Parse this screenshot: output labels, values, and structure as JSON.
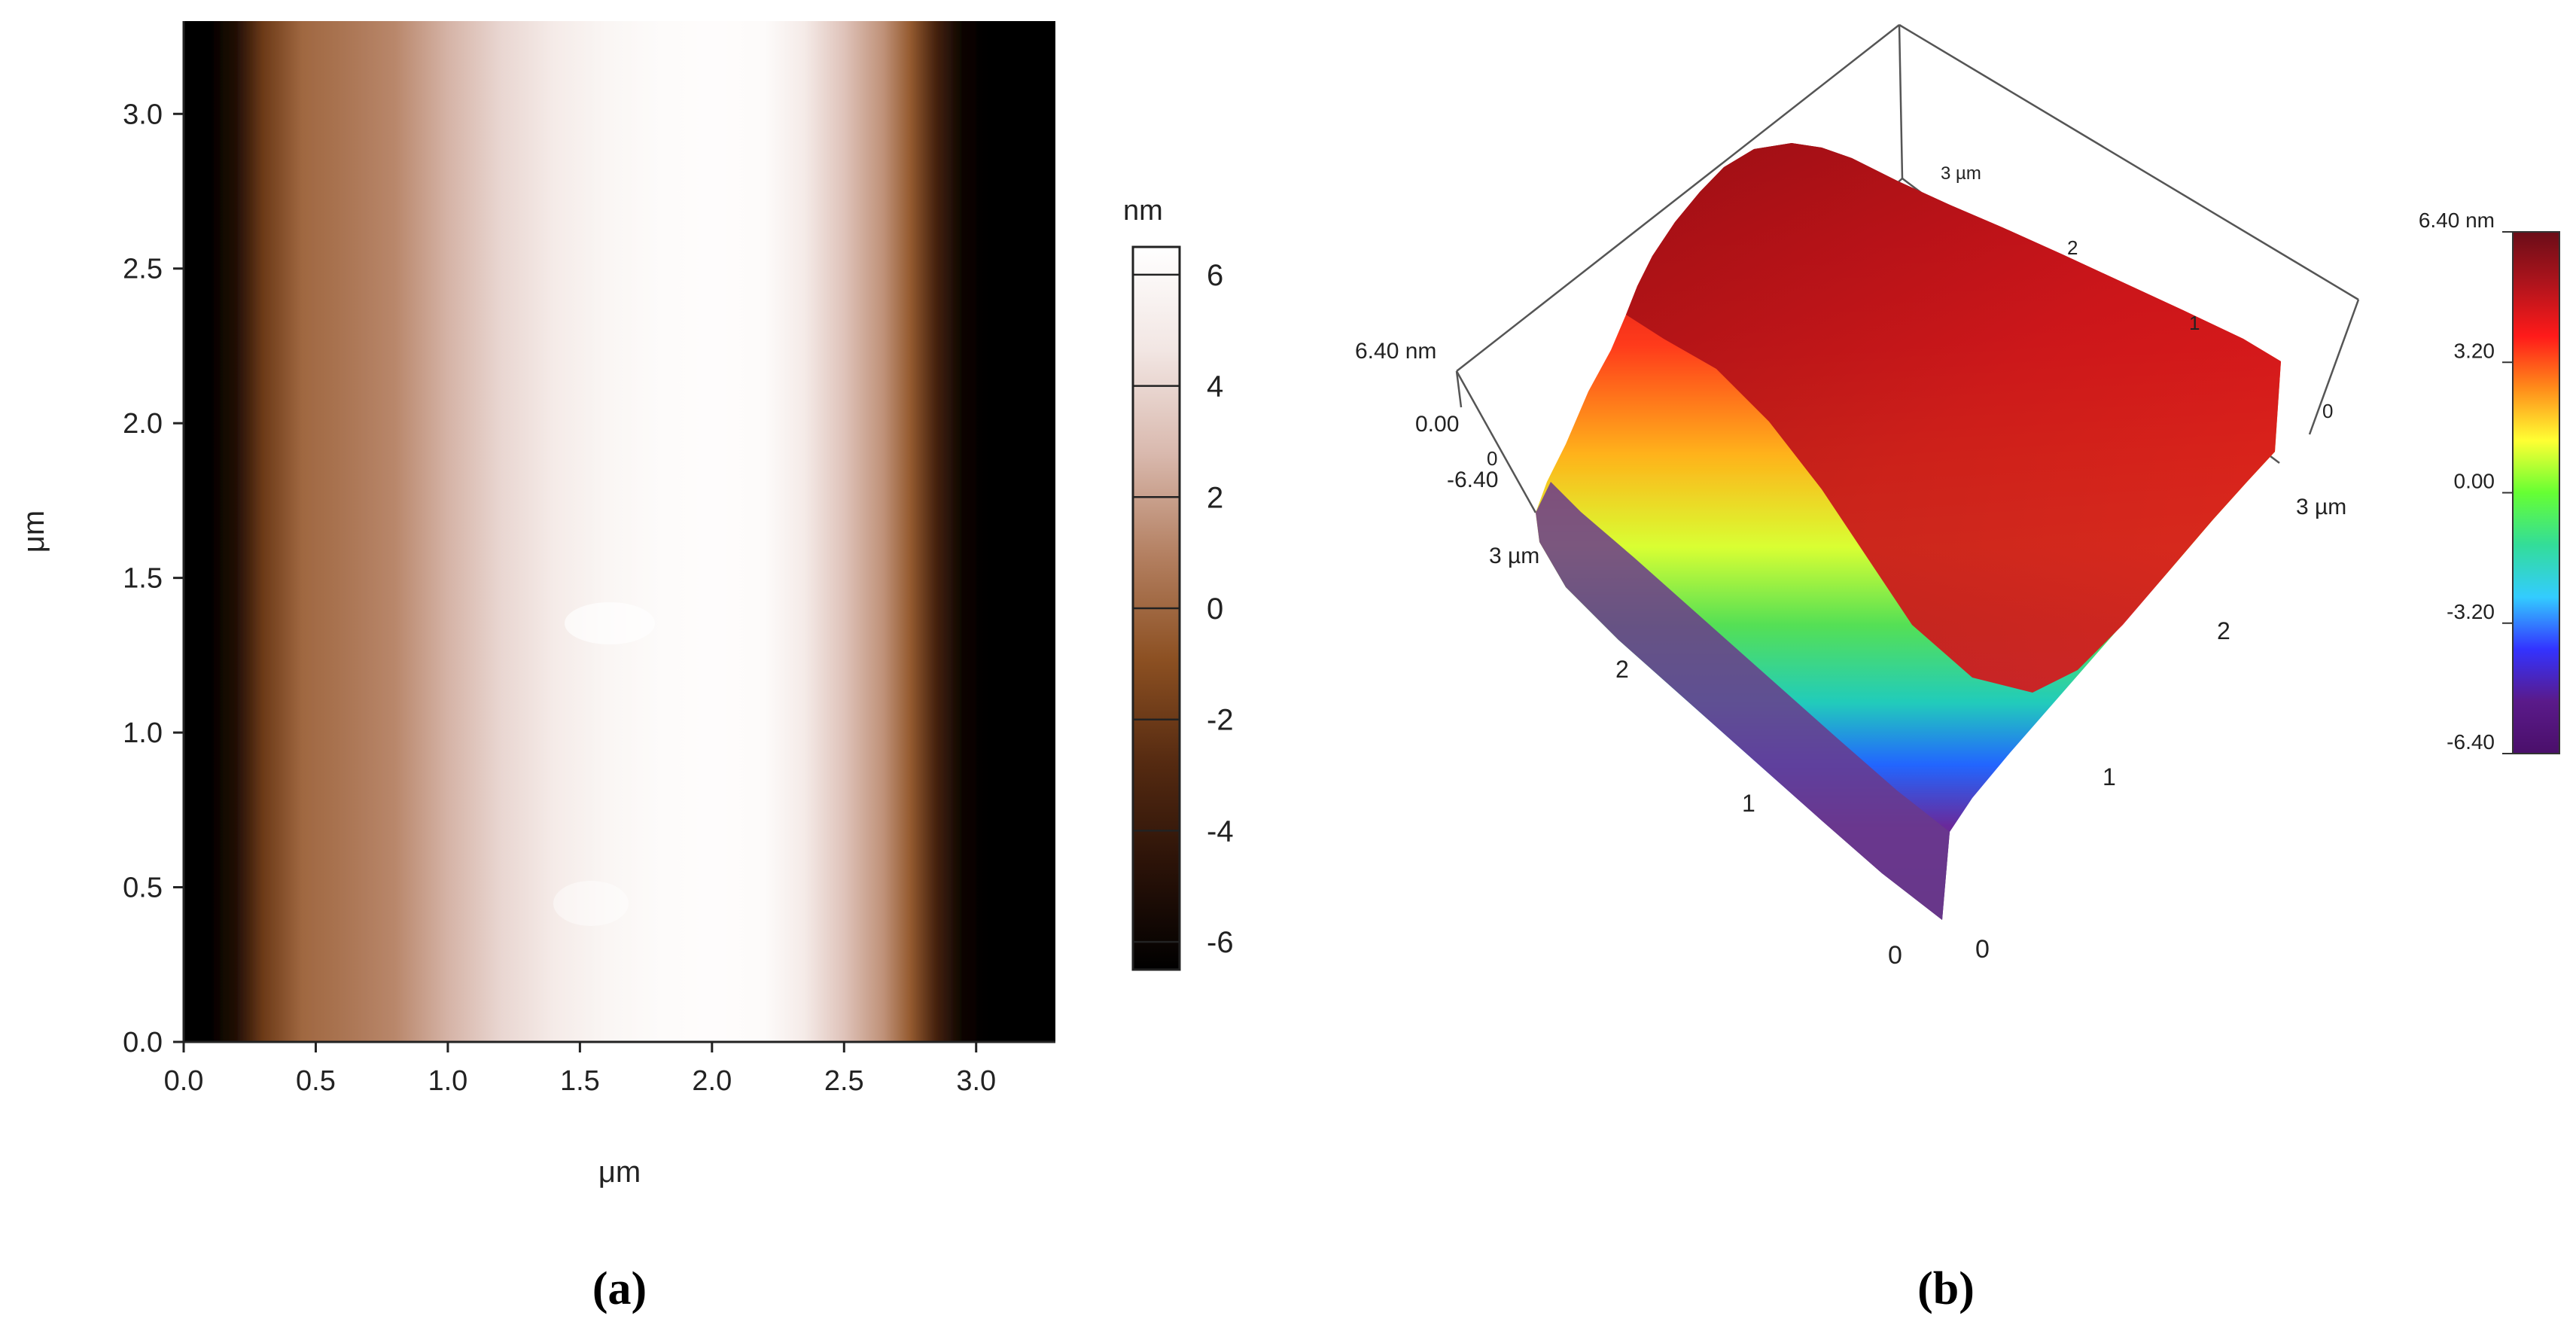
{
  "chart_data": [
    {
      "panel": "a",
      "type": "heatmap",
      "xlabel": "μm",
      "ylabel": "μm",
      "x_ticks": [
        "0.0",
        "0.5",
        "1.0",
        "1.5",
        "2.0",
        "2.5",
        "3.0"
      ],
      "y_ticks": [
        "0.0",
        "0.5",
        "1.0",
        "1.5",
        "2.0",
        "2.5",
        "3.0"
      ],
      "xlim": [
        0,
        3.3
      ],
      "ylim": [
        0,
        3.3
      ],
      "colorbar": {
        "unit": "nm",
        "ticks": [
          "6",
          "4",
          "2",
          "0",
          "-2",
          "-4",
          "-6"
        ],
        "range": [
          -6.5,
          6.5
        ],
        "colors": [
          "#ffffff",
          "#f2e6e3",
          "#d9b9ae",
          "#b37f60",
          "#8c5022",
          "#552a11",
          "#2a1208",
          "#000000"
        ]
      },
      "profile_x": [
        0.0,
        0.1,
        0.2,
        0.3,
        0.45,
        0.6,
        0.8,
        1.0,
        1.2,
        1.4,
        1.6,
        1.8,
        2.0,
        2.2,
        2.35,
        2.5,
        2.65,
        2.75,
        2.85,
        2.95,
        3.05,
        3.3
      ],
      "profile_height_nm": [
        -6.4,
        -6.4,
        -5.0,
        -2.0,
        0.0,
        0.5,
        1.2,
        2.6,
        4.0,
        5.0,
        5.8,
        6.2,
        6.3,
        6.2,
        5.0,
        3.2,
        1.5,
        -0.5,
        -3.5,
        -6.0,
        -6.4,
        -6.4
      ]
    },
    {
      "panel": "b",
      "type": "surface3d",
      "z_labels": [
        "6.40 nm",
        "0.00",
        "-6.40"
      ],
      "top_axis_ticks": [
        "3 µm",
        "2",
        "1",
        "0"
      ],
      "front_left_ticks": [
        "3 µm",
        "2",
        "1",
        "0"
      ],
      "front_right_ticks": [
        "0",
        "1",
        "2",
        "3 µm"
      ],
      "corner_zero": "0",
      "colorbar": {
        "ticks": [
          "6.40 nm",
          "3.20",
          "0.00",
          "-3.20",
          "-6.40"
        ],
        "range": [
          -6.4,
          6.4
        ],
        "colors": [
          "#6a0d18",
          "#b0141c",
          "#ff1a1a",
          "#ff8c1a",
          "#ffff33",
          "#66ff33",
          "#33dd99",
          "#33ccff",
          "#3333ff",
          "#5a1a8a",
          "#4a0f6a"
        ]
      }
    }
  ],
  "panel_labels": [
    "(a)",
    "(b)"
  ]
}
